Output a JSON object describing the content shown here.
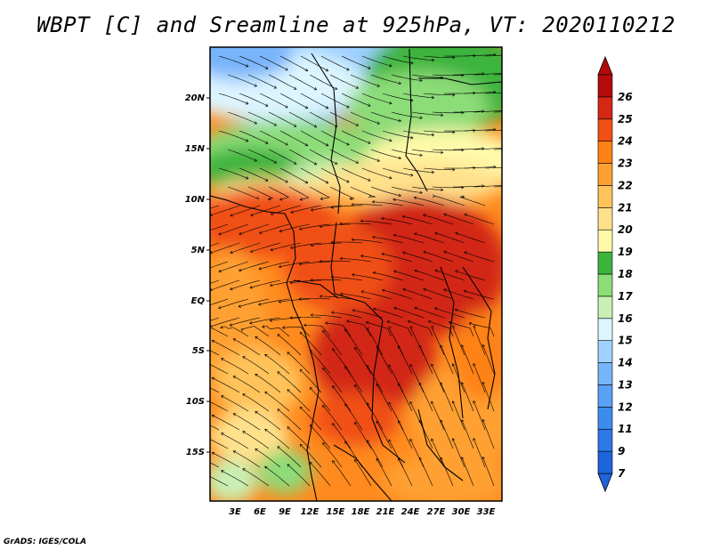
{
  "title": "WBPT [C] and Sreamline at 925hPa, VT: 2020110212",
  "credit": "GrADS: IGES/COLA",
  "map": {
    "lat_labels": [
      "20N",
      "15N",
      "10N",
      "5N",
      "EQ",
      "5S",
      "10S",
      "15S"
    ],
    "lon_labels": [
      "3E",
      "6E",
      "9E",
      "12E",
      "15E",
      "18E",
      "21E",
      "24E",
      "27E",
      "30E",
      "33E"
    ]
  },
  "colorbar": {
    "levels": [
      "7",
      "9",
      "11",
      "12",
      "13",
      "14",
      "15",
      "16",
      "17",
      "18",
      "19",
      "20",
      "21",
      "22",
      "23",
      "24",
      "25",
      "26"
    ],
    "colors": [
      "#1e64dc",
      "#2d78e6",
      "#3c8cf0",
      "#5aa0f5",
      "#78b4fa",
      "#a0d2ff",
      "#dcf5ff",
      "#c8f0b4",
      "#8cdc78",
      "#3cb43c",
      "#fffaaa",
      "#ffe18c",
      "#ffc35a",
      "#ffa032",
      "#ff8214",
      "#f05014",
      "#d22814",
      "#b40a0a"
    ]
  },
  "icons": {
    "colorbar_top": "triangle-up-icon",
    "colorbar_bottom": "triangle-down-icon"
  }
}
